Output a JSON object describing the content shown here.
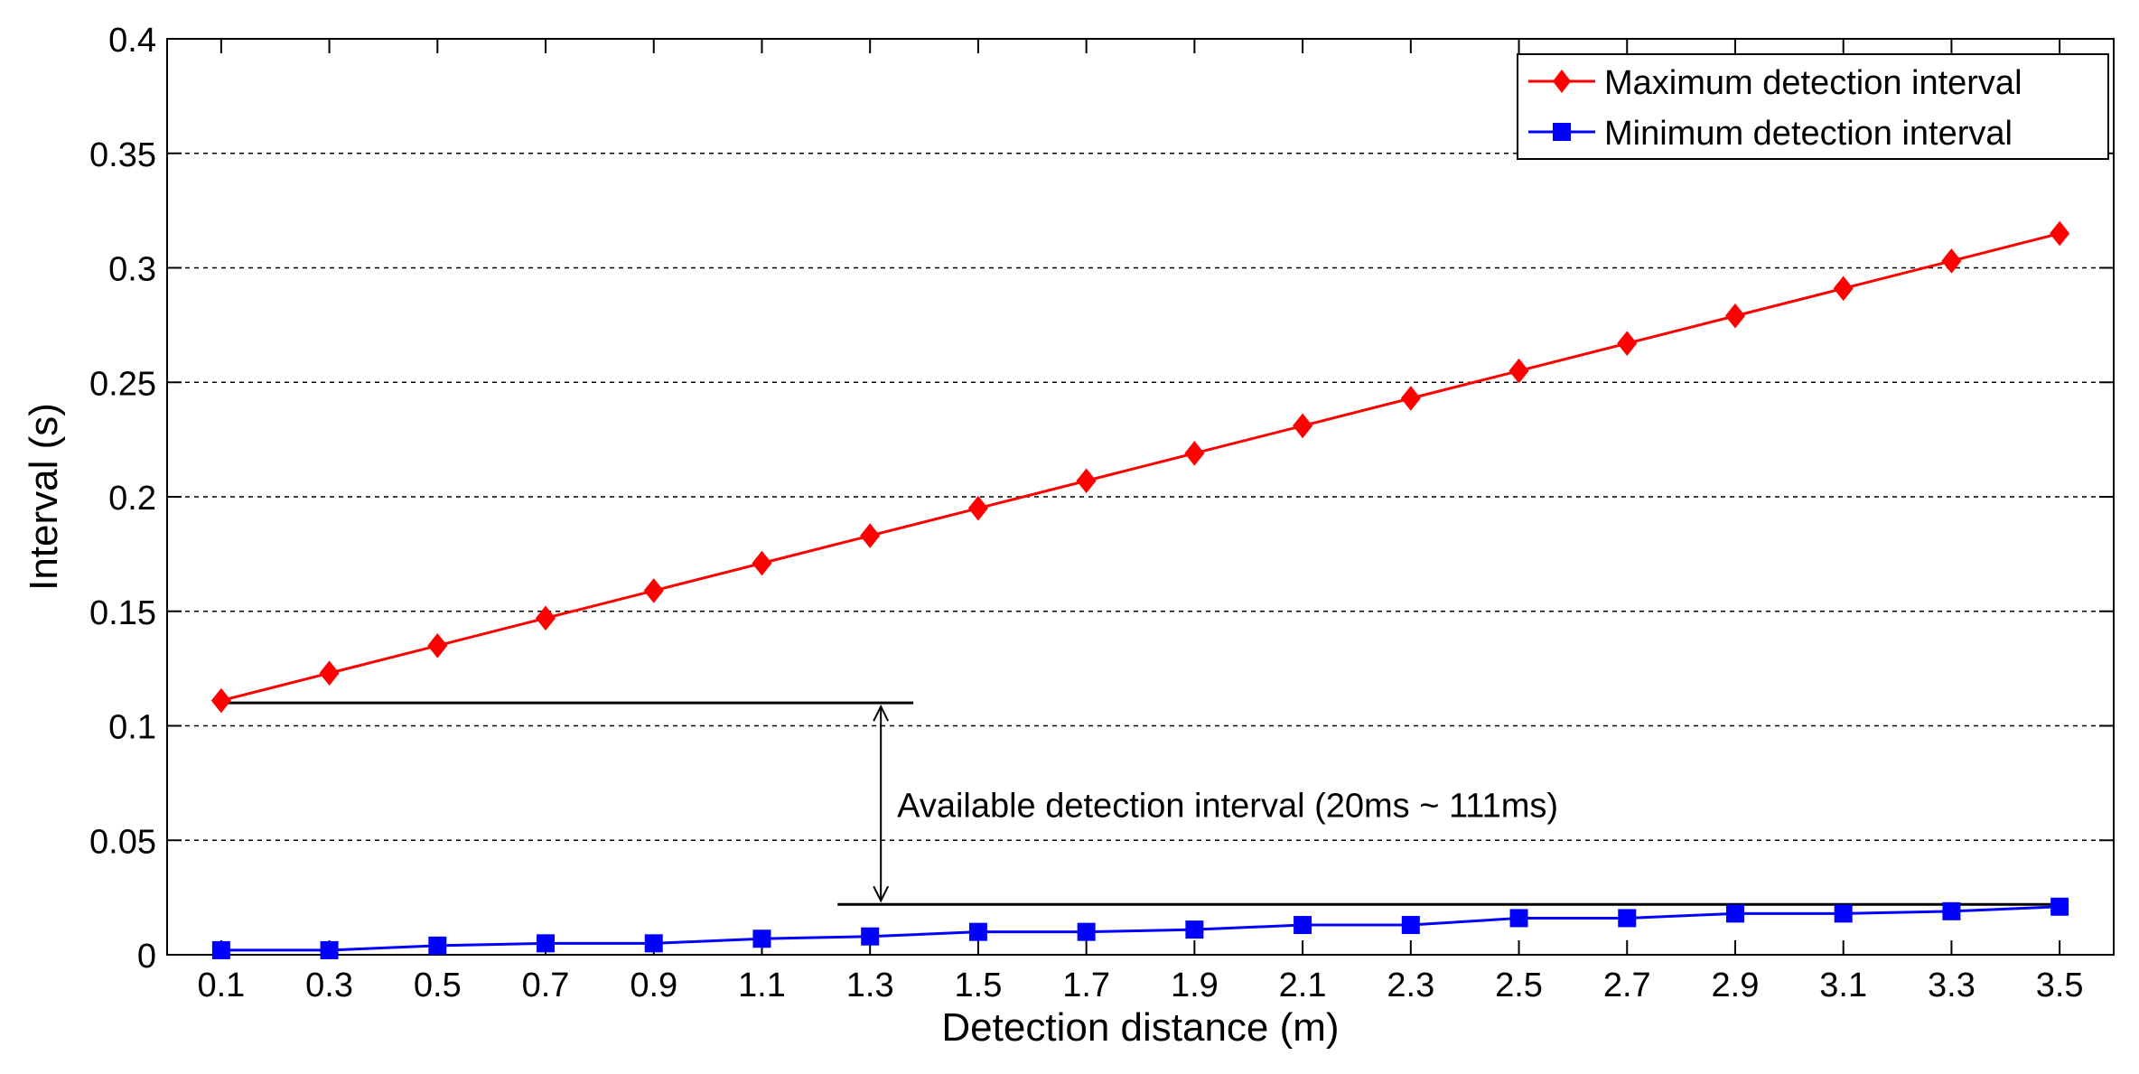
{
  "chart_data": {
    "type": "line",
    "title": "",
    "xlabel": "Detection distance (m)",
    "ylabel": "Interval (s)",
    "xlim": [
      0.0,
      3.6
    ],
    "ylim": [
      0,
      0.4
    ],
    "x_ticks": [
      "0.1",
      "0.3",
      "0.5",
      "0.7",
      "0.9",
      "1.1",
      "1.3",
      "1.5",
      "1.7",
      "1.9",
      "2.1",
      "2.3",
      "2.5",
      "2.7",
      "2.9",
      "3.1",
      "3.3",
      "3.5"
    ],
    "y_ticks": [
      "0",
      "0.05",
      "0.1",
      "0.15",
      "0.2",
      "0.25",
      "0.3",
      "0.35",
      "0.4"
    ],
    "grid": "horizontal dashed",
    "legend_position": "top-right",
    "x": [
      0.1,
      0.3,
      0.5,
      0.7,
      0.9,
      1.1,
      1.3,
      1.5,
      1.7,
      1.9,
      2.1,
      2.3,
      2.5,
      2.7,
      2.9,
      3.1,
      3.3,
      3.5
    ],
    "series": [
      {
        "name": "Maximum detection interval",
        "color": "#ff0000",
        "marker": "diamond",
        "values": [
          0.111,
          0.123,
          0.135,
          0.147,
          0.159,
          0.171,
          0.183,
          0.195,
          0.207,
          0.219,
          0.231,
          0.243,
          0.255,
          0.267,
          0.279,
          0.291,
          0.303,
          0.315
        ]
      },
      {
        "name": "Minimum detection interval",
        "color": "#0000ff",
        "marker": "square",
        "values": [
          0.002,
          0.002,
          0.004,
          0.005,
          0.005,
          0.007,
          0.008,
          0.01,
          0.01,
          0.011,
          0.013,
          0.013,
          0.016,
          0.016,
          0.018,
          0.018,
          0.019,
          0.021
        ]
      }
    ],
    "annotation": {
      "text": "Available detection interval (20ms ~ 111ms)",
      "upper_line": {
        "y": 0.11,
        "x_from": 0.1,
        "x_to": 1.38
      },
      "lower_line": {
        "y": 0.022,
        "x_from": 1.24,
        "x_to": 3.5
      },
      "arrow_x": 1.32
    }
  }
}
